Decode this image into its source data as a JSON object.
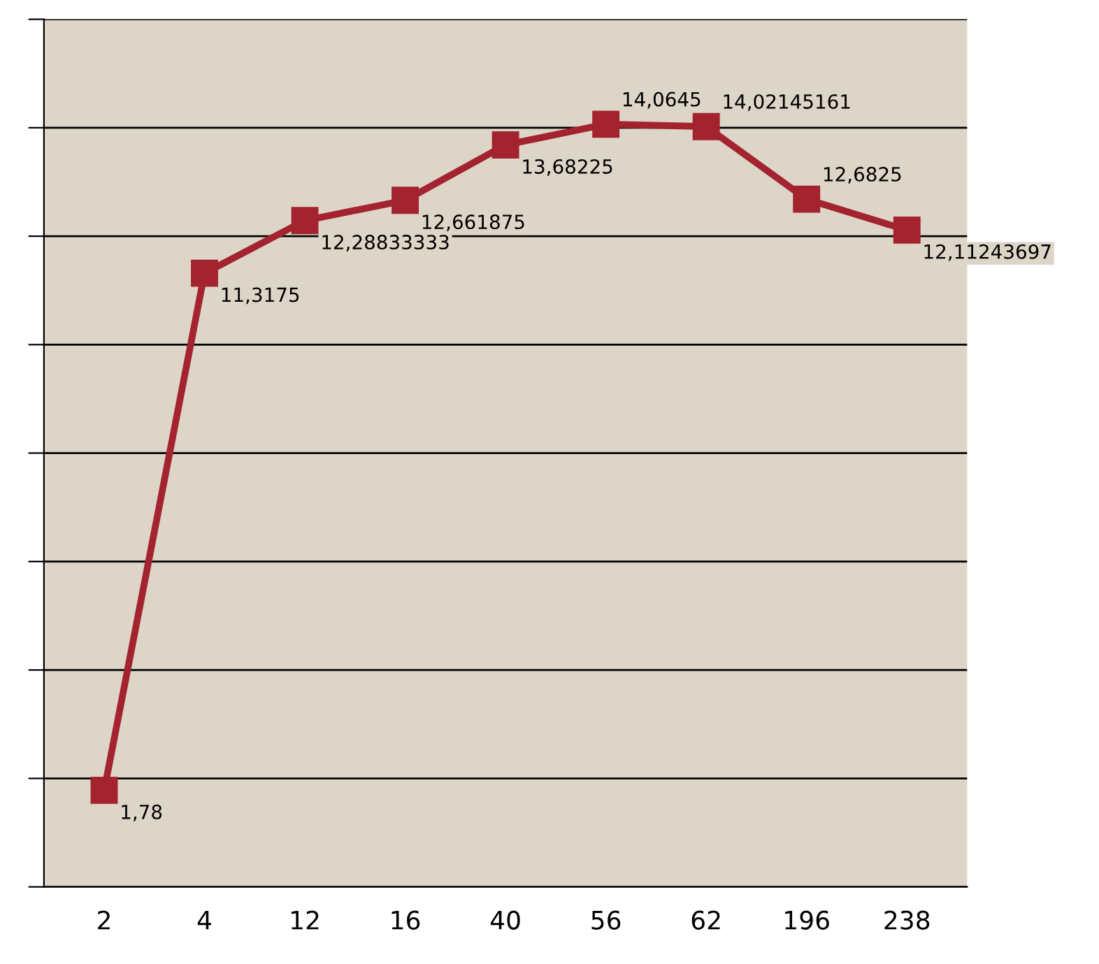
{
  "chart_data": {
    "type": "line",
    "categories": [
      "2",
      "4",
      "12",
      "16",
      "40",
      "56",
      "62",
      "196",
      "238"
    ],
    "series": [
      {
        "color": "#a3232f",
        "values": [
          1.78,
          11.3175,
          12.28833333,
          12.661875,
          13.68225,
          14.0645,
          14.02145161,
          12.6825,
          12.11243697
        ],
        "value_labels": [
          "1,78",
          "11,3175",
          "12,28833333",
          "12,661875",
          "13,68225",
          "14,0645",
          "14,02145161",
          "12,6825",
          "12,11243697"
        ]
      }
    ],
    "ylim": [
      0,
      16
    ],
    "yticks": [
      {
        "value": 0,
        "label": null
      },
      {
        "value": 2,
        "label": null
      },
      {
        "value": 4,
        "label": null
      },
      {
        "value": 6,
        "label": null
      },
      {
        "value": 8,
        "label": null
      },
      {
        "value": 10,
        "label": null
      },
      {
        "value": 12,
        "label": null
      },
      {
        "value": 14,
        "label": null
      },
      {
        "value": 16,
        "label": null
      }
    ],
    "grid": "y",
    "marker": "square",
    "line_style": "solid",
    "tick_labels": "x"
  }
}
